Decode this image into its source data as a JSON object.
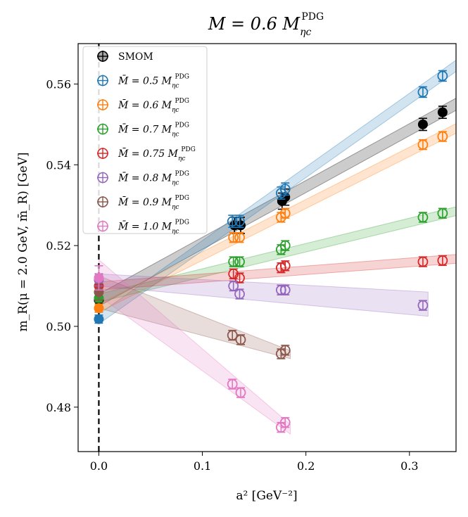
{
  "chart_data": {
    "type": "scatter",
    "title": "M = 0.6 M_ηc^PDG",
    "title_parts": {
      "main": "M = 0.6 M",
      "sub": "ηc",
      "sup": "PDG"
    },
    "xlabel": "a² [GeV⁻²]",
    "ylabel": "m_R(μ = 2.0 GeV, m̄_R) [GeV]",
    "xlim": [
      -0.02,
      0.345
    ],
    "ylim": [
      0.469,
      0.57
    ],
    "xticks": [
      0.0,
      0.1,
      0.2,
      0.3
    ],
    "xtick_labels": [
      "0.0",
      "0.1",
      "0.2",
      "0.3"
    ],
    "yticks": [
      0.48,
      0.5,
      0.52,
      0.54,
      0.56
    ],
    "ytick_labels": [
      "0.48",
      "0.50",
      "0.52",
      "0.54",
      "0.56"
    ],
    "vline_x": 0,
    "legend_location": "upper-left",
    "series": [
      {
        "name": "SMOM",
        "label": "SMOM",
        "color": "#000000",
        "points": [
          [
            0.131,
            0.525,
            0.002
          ],
          [
            0.137,
            0.525,
            0.002
          ],
          [
            0.177,
            0.531,
            0.002
          ],
          [
            0.18,
            0.532,
            0.002
          ],
          [
            0.313,
            0.55,
            0.0015
          ],
          [
            0.332,
            0.553,
            0.0015
          ]
        ],
        "extrap": [
          0.0,
          0.5065,
          0.0015
        ],
        "band": {
          "x0": 0.0,
          "x1": 0.345,
          "y0": 0.5065,
          "y1": 0.555,
          "w0": 0.0015,
          "w1": 0.0015
        }
      },
      {
        "name": "M̄=0.5M",
        "label": "M̄ = 0.5 M",
        "color": "#1f77b4",
        "points": [
          [
            0.129,
            0.526,
            0.0015
          ],
          [
            0.136,
            0.526,
            0.0015
          ],
          [
            0.176,
            0.533,
            0.0015
          ],
          [
            0.18,
            0.534,
            0.0015
          ],
          [
            0.313,
            0.558,
            0.0013
          ],
          [
            0.332,
            0.562,
            0.0013
          ]
        ],
        "extrap": [
          0.0,
          0.5018,
          0.001
        ],
        "band": {
          "x0": 0.0,
          "x1": 0.345,
          "y0": 0.5018,
          "y1": 0.5645,
          "w0": 0.0012,
          "w1": 0.0014
        }
      },
      {
        "name": "M̄=0.6M",
        "label": "M̄ = 0.6 M",
        "color": "#ff7f0e",
        "points": [
          [
            0.13,
            0.522,
            0.0012
          ],
          [
            0.136,
            0.522,
            0.0012
          ],
          [
            0.176,
            0.527,
            0.0012
          ],
          [
            0.18,
            0.528,
            0.0012
          ],
          [
            0.313,
            0.545,
            0.0012
          ],
          [
            0.332,
            0.547,
            0.0012
          ]
        ],
        "extrap": [
          0.0,
          0.5045,
          0.001
        ],
        "band": {
          "x0": 0.0,
          "x1": 0.345,
          "y0": 0.5045,
          "y1": 0.549,
          "w0": 0.001,
          "w1": 0.0012
        }
      },
      {
        "name": "M̄=0.7M",
        "label": "M̄ = 0.7 M",
        "color": "#2ca02c",
        "points": [
          [
            0.13,
            0.516,
            0.0012
          ],
          [
            0.136,
            0.516,
            0.0012
          ],
          [
            0.176,
            0.519,
            0.0012
          ],
          [
            0.18,
            0.52,
            0.0012
          ],
          [
            0.313,
            0.527,
            0.0012
          ],
          [
            0.332,
            0.528,
            0.0012
          ]
        ],
        "extrap": [
          0.0,
          0.507,
          0.001
        ],
        "band": {
          "x0": 0.0,
          "x1": 0.345,
          "y0": 0.507,
          "y1": 0.5285,
          "w0": 0.001,
          "w1": 0.0011
        }
      },
      {
        "name": "M̄=0.75M",
        "label": "M̄ = 0.75 M",
        "color": "#d62728",
        "points": [
          [
            0.13,
            0.513,
            0.0012
          ],
          [
            0.136,
            0.512,
            0.0012
          ],
          [
            0.176,
            0.5145,
            0.0012
          ],
          [
            0.18,
            0.515,
            0.0012
          ],
          [
            0.313,
            0.516,
            0.0012
          ],
          [
            0.332,
            0.5163,
            0.0012
          ]
        ],
        "extrap": [
          0.0,
          0.51,
          0.001
        ],
        "band": {
          "x0": 0.0,
          "x1": 0.345,
          "y0": 0.51,
          "y1": 0.5167,
          "w0": 0.001,
          "w1": 0.0011
        }
      },
      {
        "name": "M̄=0.8M",
        "label": "M̄ = 0.8 M",
        "color": "#9467bd",
        "points": [
          [
            0.13,
            0.51,
            0.0012
          ],
          [
            0.136,
            0.508,
            0.0012
          ],
          [
            0.176,
            0.509,
            0.0012
          ],
          [
            0.18,
            0.509,
            0.0012
          ],
          [
            0.313,
            0.5052,
            0.0012
          ]
        ],
        "extrap": [
          0.0,
          0.5115,
          0.0015
        ],
        "band": {
          "x0": 0.0,
          "x1": 0.318,
          "y0": 0.5115,
          "y1": 0.5055,
          "w0": 0.0015,
          "w1": 0.003
        }
      },
      {
        "name": "M̄=0.9M",
        "label": "M̄ = 0.9 M",
        "color": "#8c564b",
        "points": [
          [
            0.129,
            0.4978,
            0.0012
          ],
          [
            0.137,
            0.4967,
            0.0012
          ],
          [
            0.176,
            0.4932,
            0.0012
          ],
          [
            0.18,
            0.4941,
            0.0012
          ]
        ],
        "extrap": [
          0.0,
          0.5085,
          0.002
        ],
        "band": {
          "x0": 0.0,
          "x1": 0.185,
          "y0": 0.5085,
          "y1": 0.493,
          "w0": 0.004,
          "w1": 0.001
        }
      },
      {
        "name": "M̄=1.0M",
        "label": "M̄ = 1.0 M",
        "color": "#e377c2",
        "points": [
          [
            0.129,
            0.4857,
            0.0012
          ],
          [
            0.137,
            0.4836,
            0.0012
          ],
          [
            0.176,
            0.475,
            0.0012
          ],
          [
            0.18,
            0.4762,
            0.0012
          ]
        ],
        "extrap": [
          0.0,
          0.512,
          0.003
        ],
        "band": {
          "x0": 0.0,
          "x1": 0.185,
          "y0": 0.512,
          "y1": 0.4745,
          "w0": 0.0045,
          "w1": 0.0012
        }
      }
    ]
  }
}
